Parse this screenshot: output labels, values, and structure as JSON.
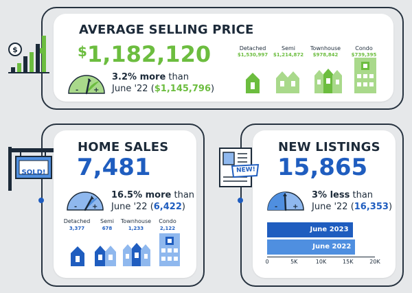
{
  "colors": {
    "green": "#6cbd3f",
    "green_light": "#a9d98b",
    "blue": "#1f5dbf",
    "blue_light": "#4f8fe0",
    "dark": "#1c2a39"
  },
  "price": {
    "title": "AVERAGE SELLING PRICE",
    "currency": "$",
    "value": "1,182,120",
    "change_pct": "3.2% more",
    "change_tail": " than",
    "compare_prefix": "June '22 (",
    "compare_value": "$1,145,796",
    "compare_suffix": ")",
    "types": [
      {
        "label": "Detached",
        "value": "$1,530,997"
      },
      {
        "label": "Semi",
        "value": "$1,214,872"
      },
      {
        "label": "Townhouse",
        "value": "$978,842"
      },
      {
        "label": "Condo",
        "value": "$739,395"
      }
    ],
    "icon": "dollar-bar-chart-icon"
  },
  "sales": {
    "title": "HOME SALES",
    "value": "7,481",
    "change_pct": "16.5% more",
    "change_tail": " than",
    "compare_prefix": "June '22 (",
    "compare_value": "6,422",
    "compare_suffix": ")",
    "sign": "SOLD!",
    "types": [
      {
        "label": "Detached",
        "value": "3,377"
      },
      {
        "label": "Semi",
        "value": "678"
      },
      {
        "label": "Townhouse",
        "value": "1,233"
      },
      {
        "label": "Condo",
        "value": "2,122"
      }
    ]
  },
  "listings": {
    "title": "NEW LISTINGS",
    "value": "15,865",
    "change_pct": "3% less",
    "change_tail": " than",
    "compare_prefix": "June '22 (",
    "compare_value": "16,353",
    "compare_suffix": ")",
    "badge": "NEW!",
    "gauge_minus": "-",
    "gauge_plus": "+"
  },
  "chart_data": {
    "type": "bar",
    "orientation": "horizontal",
    "categories": [
      "June 2023",
      "June 2022"
    ],
    "values": [
      15865,
      16353
    ],
    "xlim": [
      0,
      20000
    ],
    "xticks": [
      "0",
      "5K",
      "10K",
      "15K",
      "20K"
    ],
    "colors": [
      "#1f5dbf",
      "#4f8fe0"
    ]
  }
}
